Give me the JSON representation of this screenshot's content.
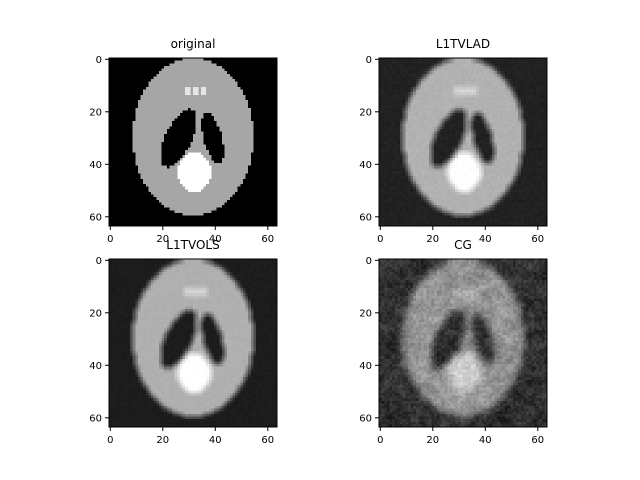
{
  "figure": {
    "background": "#ffffff",
    "image_shape": [
      64,
      64
    ],
    "colormap": "gray",
    "panels": [
      {
        "id": "original",
        "title": "original",
        "x_ticks": [
          "0",
          "20",
          "40",
          "60"
        ],
        "y_ticks": [
          "0",
          "20",
          "40",
          "60"
        ],
        "reconstruction": "exact",
        "background_level": 0.0,
        "noise_level": 0.0,
        "blur": "none"
      },
      {
        "id": "l1tvlad",
        "title": "L1TVLAD",
        "x_ticks": [
          "0",
          "20",
          "40",
          "60"
        ],
        "y_ticks": [
          "0",
          "20",
          "40",
          "60"
        ],
        "reconstruction": "smoothed",
        "background_level": 0.13,
        "noise_level": 0.03,
        "blur": "moderate"
      },
      {
        "id": "l1tvols",
        "title": "L1TVOLS",
        "x_ticks": [
          "0",
          "20",
          "40",
          "60"
        ],
        "y_ticks": [
          "0",
          "20",
          "40",
          "60"
        ],
        "reconstruction": "smoothed",
        "background_level": 0.11,
        "noise_level": 0.02,
        "blur": "light"
      },
      {
        "id": "cg",
        "title": "CG",
        "x_ticks": [
          "0",
          "20",
          "40",
          "60"
        ],
        "y_ticks": [
          "0",
          "20",
          "40",
          "60"
        ],
        "reconstruction": "noisy",
        "background_level": 0.18,
        "noise_level": 0.12,
        "blur": "heavy"
      }
    ]
  }
}
